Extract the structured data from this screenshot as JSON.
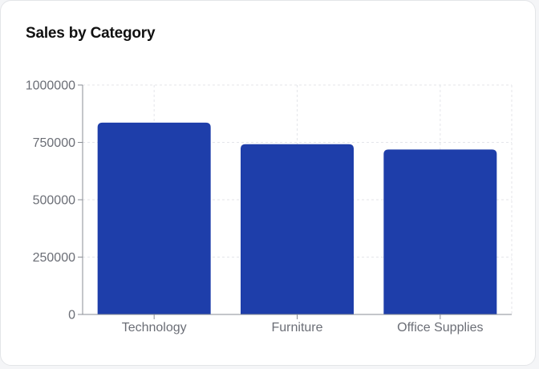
{
  "card": {
    "title": "Sales by Category"
  },
  "chart_data": {
    "type": "bar",
    "title": "Sales by Category",
    "categories": [
      "Technology",
      "Furniture",
      "Office Supplies"
    ],
    "values": [
      836000,
      742000,
      719000
    ],
    "ylim": [
      0,
      1000000
    ],
    "yticks": [
      0,
      250000,
      500000,
      750000,
      1000000
    ],
    "ytick_labels": [
      "0",
      "250000",
      "500000",
      "750000",
      "1000000"
    ],
    "grid": true,
    "bar_color": "#1e3eaa",
    "xlabel": "",
    "ylabel": ""
  }
}
